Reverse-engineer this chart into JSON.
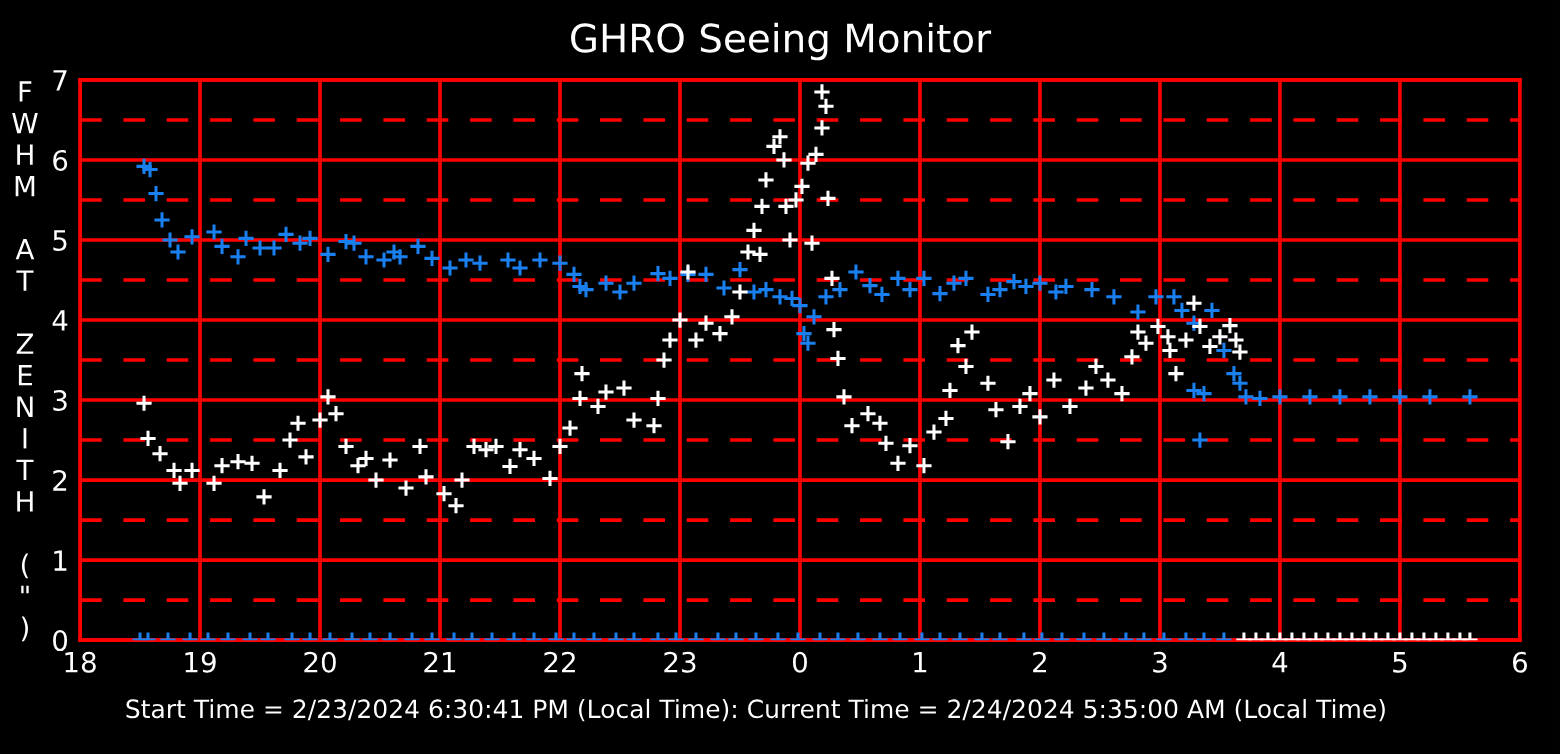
{
  "chart_data": {
    "type": "scatter",
    "title": "GHRO Seeing Monitor",
    "ylabel": "FWHM AT ZENITH (\")",
    "annotations": [
      "Start Time = 2/23/2024 6:30:41 PM (Local Time): Current Time = 2/24/2024 5:35:00 AM (Local Time)"
    ],
    "xlim": [
      "2024-02-23T18:00",
      "2024-02-24T06:00"
    ],
    "ylim": [
      0,
      7
    ],
    "xticks": [
      {
        "value": "2024-02-23T18:00",
        "label": "18"
      },
      {
        "value": "2024-02-23T19:00",
        "label": "19"
      },
      {
        "value": "2024-02-23T20:00",
        "label": "20"
      },
      {
        "value": "2024-02-23T21:00",
        "label": "21"
      },
      {
        "value": "2024-02-23T22:00",
        "label": "22"
      },
      {
        "value": "2024-02-23T23:00",
        "label": "23"
      },
      {
        "value": "2024-02-24T00:00",
        "label": "0"
      },
      {
        "value": "2024-02-24T01:00",
        "label": "1"
      },
      {
        "value": "2024-02-24T02:00",
        "label": "2"
      },
      {
        "value": "2024-02-24T03:00",
        "label": "3"
      },
      {
        "value": "2024-02-24T04:00",
        "label": "4"
      },
      {
        "value": "2024-02-24T05:00",
        "label": "5"
      },
      {
        "value": "2024-02-24T06:00",
        "label": "6"
      }
    ],
    "yticks": [
      0,
      {
        "value": 0.5,
        "label": null
      },
      1,
      {
        "value": 1.5,
        "label": null
      },
      2,
      {
        "value": 2.5,
        "label": null
      },
      3,
      {
        "value": 3.5,
        "label": null
      },
      4,
      {
        "value": 4.5,
        "label": null
      },
      5,
      {
        "value": 5.5,
        "label": null
      },
      6,
      {
        "value": 6.5,
        "label": null
      },
      7
    ],
    "grid": true,
    "marker": "cross",
    "series": [
      {
        "color": "#1a80f0",
        "x": [
          "2024-02-23T18:32",
          "2024-02-23T18:35",
          "2024-02-23T18:38",
          "2024-02-23T18:41",
          "2024-02-23T18:45",
          "2024-02-23T18:49",
          "2024-02-23T18:56",
          "2024-02-23T19:07",
          "2024-02-23T19:11",
          "2024-02-23T19:19",
          "2024-02-23T19:23",
          "2024-02-23T19:30",
          "2024-02-23T19:37",
          "2024-02-23T19:43",
          "2024-02-23T19:50",
          "2024-02-23T19:55",
          "2024-02-23T20:04",
          "2024-02-23T20:13",
          "2024-02-23T20:17",
          "2024-02-23T20:23",
          "2024-02-23T20:32",
          "2024-02-23T20:37",
          "2024-02-23T20:40",
          "2024-02-23T20:49",
          "2024-02-23T20:56",
          "2024-02-23T21:05",
          "2024-02-23T21:13",
          "2024-02-23T21:20",
          "2024-02-23T21:34",
          "2024-02-23T21:40",
          "2024-02-23T21:50",
          "2024-02-23T22:00",
          "2024-02-23T22:07",
          "2024-02-23T22:10",
          "2024-02-23T22:13",
          "2024-02-23T22:23",
          "2024-02-23T22:30",
          "2024-02-23T22:37",
          "2024-02-23T22:49",
          "2024-02-23T22:55",
          "2024-02-23T23:04",
          "2024-02-23T23:13",
          "2024-02-23T23:22",
          "2024-02-23T23:30",
          "2024-02-23T23:37",
          "2024-02-23T23:43",
          "2024-02-23T23:50",
          "2024-02-23T23:56",
          "2024-02-24T00:00",
          "2024-02-24T00:02",
          "2024-02-24T00:04",
          "2024-02-24T00:07",
          "2024-02-24T00:13",
          "2024-02-24T00:20",
          "2024-02-24T00:28",
          "2024-02-24T00:35",
          "2024-02-24T00:41",
          "2024-02-24T00:49",
          "2024-02-24T00:55",
          "2024-02-24T01:02",
          "2024-02-24T01:10",
          "2024-02-24T01:17",
          "2024-02-24T01:23",
          "2024-02-24T01:34",
          "2024-02-24T01:40",
          "2024-02-24T01:47",
          "2024-02-24T01:53",
          "2024-02-24T02:00",
          "2024-02-24T02:08",
          "2024-02-24T02:13",
          "2024-02-24T02:26",
          "2024-02-24T02:37",
          "2024-02-24T02:49",
          "2024-02-24T02:58",
          "2024-02-24T03:07",
          "2024-02-24T03:11",
          "2024-02-24T03:17",
          "2024-02-24T03:26",
          "2024-02-24T03:32",
          "2024-02-24T03:22",
          "2024-02-24T03:20",
          "2024-02-24T03:17",
          "2024-02-24T03:37",
          "2024-02-24T03:40",
          "2024-02-24T03:43",
          "2024-02-24T03:50",
          "2024-02-24T04:00",
          "2024-02-24T04:15",
          "2024-02-24T04:30",
          "2024-02-24T04:45",
          "2024-02-24T05:00",
          "2024-02-24T05:15",
          "2024-02-24T05:35"
        ],
        "values": [
          5.92,
          5.88,
          5.58,
          5.25,
          5.0,
          4.85,
          5.04,
          5.1,
          4.92,
          4.79,
          5.02,
          4.9,
          4.9,
          5.07,
          4.96,
          5.02,
          4.82,
          4.98,
          4.96,
          4.79,
          4.75,
          4.85,
          4.79,
          4.92,
          4.77,
          4.65,
          4.75,
          4.71,
          4.75,
          4.65,
          4.75,
          4.71,
          4.57,
          4.42,
          4.38,
          4.46,
          4.35,
          4.46,
          4.58,
          4.52,
          4.57,
          4.57,
          4.4,
          4.63,
          4.35,
          4.38,
          4.29,
          4.27,
          4.18,
          3.83,
          3.71,
          4.04,
          4.29,
          4.38,
          4.6,
          4.43,
          4.32,
          4.52,
          4.38,
          4.52,
          4.33,
          4.46,
          4.52,
          4.32,
          4.38,
          4.48,
          4.42,
          4.46,
          4.35,
          4.42,
          4.38,
          4.29,
          4.1,
          4.29,
          4.29,
          4.12,
          3.96,
          4.12,
          3.62,
          3.08,
          2.5,
          3.12,
          3.33,
          3.21,
          3.04,
          3.02,
          3.04,
          3.04,
          3.04,
          3.04,
          3.04,
          3.04,
          3.04
        ]
      },
      {
        "color": "#ffffff",
        "x": [
          "2024-02-23T18:32",
          "2024-02-23T18:34",
          "2024-02-23T18:40",
          "2024-02-23T18:47",
          "2024-02-23T18:50",
          "2024-02-23T18:56",
          "2024-02-23T19:07",
          "2024-02-23T19:11",
          "2024-02-23T19:19",
          "2024-02-23T19:26",
          "2024-02-23T19:32",
          "2024-02-23T19:40",
          "2024-02-23T19:45",
          "2024-02-23T19:49",
          "2024-02-23T19:53",
          "2024-02-23T20:00",
          "2024-02-23T20:04",
          "2024-02-23T20:08",
          "2024-02-23T20:13",
          "2024-02-23T20:19",
          "2024-02-23T20:23",
          "2024-02-23T20:28",
          "2024-02-23T20:35",
          "2024-02-23T20:43",
          "2024-02-23T20:50",
          "2024-02-23T20:53",
          "2024-02-23T21:02",
          "2024-02-23T21:08",
          "2024-02-23T21:11",
          "2024-02-23T21:17",
          "2024-02-23T21:23",
          "2024-02-23T21:28",
          "2024-02-23T21:35",
          "2024-02-23T21:40",
          "2024-02-23T21:47",
          "2024-02-23T21:55",
          "2024-02-23T22:00",
          "2024-02-23T22:05",
          "2024-02-23T22:10",
          "2024-02-23T22:11",
          "2024-02-23T22:19",
          "2024-02-23T22:23",
          "2024-02-23T22:32",
          "2024-02-23T22:37",
          "2024-02-23T22:47",
          "2024-02-23T22:49",
          "2024-02-23T22:52",
          "2024-02-23T22:55",
          "2024-02-23T23:00",
          "2024-02-23T23:04",
          "2024-02-23T23:08",
          "2024-02-23T23:13",
          "2024-02-23T23:20",
          "2024-02-23T23:26",
          "2024-02-23T23:30",
          "2024-02-23T23:34",
          "2024-02-23T23:37",
          "2024-02-23T23:40",
          "2024-02-23T23:41",
          "2024-02-23T23:43",
          "2024-02-23T23:47",
          "2024-02-23T23:50",
          "2024-02-23T23:52",
          "2024-02-23T23:55",
          "2024-02-23T23:53",
          "2024-02-23T23:58",
          "2024-02-24T00:01",
          "2024-02-24T00:04",
          "2024-02-24T00:08",
          "2024-02-24T00:11",
          "2024-02-24T00:11",
          "2024-02-24T00:13",
          "2024-02-24T00:14",
          "2024-02-24T00:06",
          "2024-02-24T00:16",
          "2024-02-24T00:17",
          "2024-02-24T00:19",
          "2024-02-24T00:22",
          "2024-02-24T00:26",
          "2024-02-24T00:34",
          "2024-02-24T00:40",
          "2024-02-24T00:43",
          "2024-02-24T00:49",
          "2024-02-24T00:55",
          "2024-02-24T01:02",
          "2024-02-24T01:07",
          "2024-02-24T01:13",
          "2024-02-24T01:15",
          "2024-02-24T01:19",
          "2024-02-24T01:26",
          "2024-02-24T01:23",
          "2024-02-24T01:34",
          "2024-02-24T01:38",
          "2024-02-24T01:44",
          "2024-02-24T01:50",
          "2024-02-24T01:55",
          "2024-02-24T02:00",
          "2024-02-24T02:07",
          "2024-02-24T02:15",
          "2024-02-24T02:23",
          "2024-02-24T02:28",
          "2024-02-24T02:34",
          "2024-02-24T02:41",
          "2024-02-24T02:46",
          "2024-02-24T02:49",
          "2024-02-24T02:53",
          "2024-02-24T02:59",
          "2024-02-24T03:04",
          "2024-02-24T03:05",
          "2024-02-24T03:08",
          "2024-02-24T03:13",
          "2024-02-24T03:17",
          "2024-02-24T03:20",
          "2024-02-24T03:25",
          "2024-02-24T03:30",
          "2024-02-24T03:35",
          "2024-02-24T03:38",
          "2024-02-24T03:40"
        ],
        "values": [
          2.96,
          2.52,
          2.33,
          2.12,
          1.96,
          2.12,
          1.96,
          2.18,
          2.23,
          2.21,
          1.79,
          2.12,
          2.5,
          2.71,
          2.29,
          2.75,
          3.04,
          2.83,
          2.42,
          2.18,
          2.27,
          2.0,
          2.25,
          1.9,
          2.42,
          2.04,
          1.83,
          1.68,
          2.0,
          2.42,
          2.38,
          2.42,
          2.17,
          2.38,
          2.27,
          2.02,
          2.42,
          2.65,
          3.02,
          3.33,
          2.92,
          3.1,
          3.15,
          2.75,
          2.68,
          3.02,
          3.5,
          3.75,
          4.0,
          4.6,
          3.75,
          3.96,
          3.83,
          4.04,
          4.35,
          4.85,
          5.12,
          4.82,
          5.42,
          5.75,
          6.17,
          6.29,
          6.0,
          5.0,
          5.42,
          5.5,
          5.67,
          5.96,
          6.07,
          6.4,
          6.85,
          6.67,
          5.52,
          4.96,
          4.52,
          3.88,
          3.52,
          3.04,
          2.68,
          2.83,
          2.71,
          2.46,
          2.21,
          2.43,
          2.18,
          2.6,
          2.77,
          3.12,
          3.68,
          3.85,
          3.42,
          3.21,
          2.88,
          2.48,
          2.92,
          3.08,
          2.79,
          3.25,
          2.92,
          3.15,
          3.42,
          3.25,
          3.08,
          3.54,
          3.85,
          3.71,
          3.92,
          3.79,
          3.62,
          3.33,
          3.75,
          4.21,
          3.92,
          3.67,
          3.79,
          3.93,
          3.75,
          3.6
        ]
      },
      {
        "color": "#1a80f0",
        "x": [
          "2024-02-23T18:30",
          "2024-02-23T18:34",
          "2024-02-23T18:44",
          "2024-02-23T18:55",
          "2024-02-23T19:04",
          "2024-02-23T19:14",
          "2024-02-23T19:25",
          "2024-02-23T19:34",
          "2024-02-23T19:46",
          "2024-02-23T19:55",
          "2024-02-23T20:05",
          "2024-02-23T20:16",
          "2024-02-23T20:25",
          "2024-02-23T20:35",
          "2024-02-23T20:46",
          "2024-02-23T20:56",
          "2024-02-23T21:07",
          "2024-02-23T21:16",
          "2024-02-23T21:26",
          "2024-02-23T21:37",
          "2024-02-23T21:47",
          "2024-02-23T21:58",
          "2024-02-23T22:07",
          "2024-02-23T22:17",
          "2024-02-23T22:28",
          "2024-02-23T22:37",
          "2024-02-23T22:49",
          "2024-02-23T22:58",
          "2024-02-23T23:08",
          "2024-02-23T23:19",
          "2024-02-23T23:28",
          "2024-02-23T23:38",
          "2024-02-23T23:49",
          "2024-02-23T23:59",
          "2024-02-24T00:10",
          "2024-02-24T00:19",
          "2024-02-24T00:29",
          "2024-02-24T00:40",
          "2024-02-24T00:50",
          "2024-02-24T01:01",
          "2024-02-24T01:10",
          "2024-02-24T01:20",
          "2024-02-24T01:31",
          "2024-02-24T01:40",
          "2024-02-24T01:52",
          "2024-02-24T02:01",
          "2024-02-24T02:11",
          "2024-02-24T02:22",
          "2024-02-24T02:32",
          "2024-02-24T02:43",
          "2024-02-24T02:52",
          "2024-02-24T03:02",
          "2024-02-24T03:13",
          "2024-02-24T03:22",
          "2024-02-24T03:32"
        ],
        "values": [
          0,
          0,
          0,
          0,
          0,
          0,
          0,
          0,
          0,
          0,
          0,
          0,
          0,
          0,
          0,
          0,
          0,
          0,
          0,
          0,
          0,
          0,
          0,
          0,
          0,
          0,
          0,
          0,
          0,
          0,
          0,
          0,
          0,
          0,
          0,
          0,
          0,
          0,
          0,
          0,
          0,
          0,
          0,
          0,
          0,
          0,
          0,
          0,
          0,
          0,
          0,
          0,
          0,
          0,
          0
        ]
      },
      {
        "color": "#ffffff",
        "x": [
          "2024-02-24T03:42",
          "2024-02-24T03:48",
          "2024-02-24T03:54",
          "2024-02-24T04:00",
          "2024-02-24T04:06",
          "2024-02-24T04:12",
          "2024-02-24T04:18",
          "2024-02-24T04:24",
          "2024-02-24T04:30",
          "2024-02-24T04:36",
          "2024-02-24T04:42",
          "2024-02-24T04:48",
          "2024-02-24T04:54",
          "2024-02-24T05:00",
          "2024-02-24T05:06",
          "2024-02-24T05:12",
          "2024-02-24T05:18",
          "2024-02-24T05:24",
          "2024-02-24T05:30",
          "2024-02-24T05:35"
        ],
        "values": [
          0,
          0,
          0,
          0,
          0,
          0,
          0,
          0,
          0,
          0,
          0,
          0,
          0,
          0,
          0,
          0,
          0,
          0,
          0,
          0
        ]
      }
    ]
  }
}
